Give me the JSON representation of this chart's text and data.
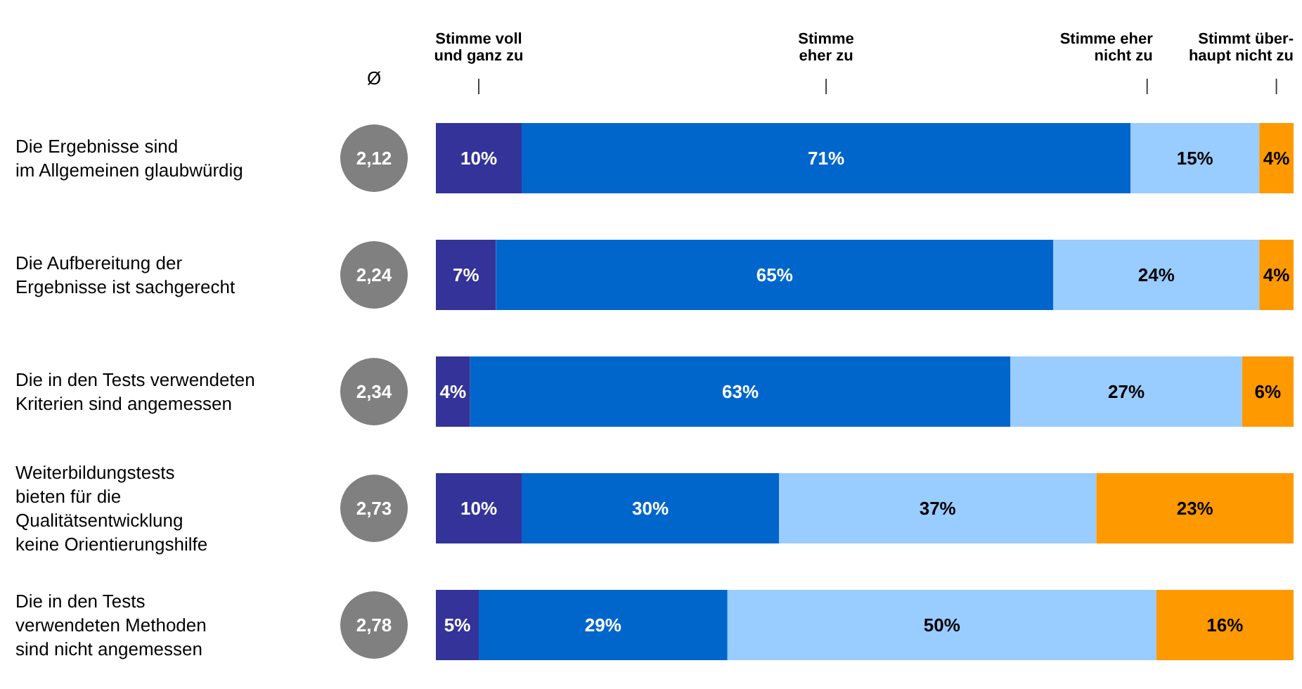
{
  "chart_data": {
    "type": "bar",
    "orientation": "horizontal",
    "stacked": true,
    "tick_labels": "y",
    "categories": [
      "Die Ergebnisse sind\nim Allgemeinen glaubwürdig",
      "Die Aufbereitung der\nErgebnisse ist sachgerecht",
      "Die in den Tests verwendeten\nKriterien sind angemessen",
      "Weiterbildungstests\nbieten für die\nQualitätsentwicklung\nkeine Orientierungshilfe",
      "Die in den Tests\nverwendeten Methoden\nsind nicht angemessen"
    ],
    "series": [
      {
        "color": "#333399",
        "values": [
          10,
          7,
          4,
          10,
          5
        ],
        "value_labels": [
          "10%",
          "7%",
          "4%",
          "10%",
          "5%"
        ]
      },
      {
        "color": "#0066cc",
        "values": [
          71,
          65,
          63,
          30,
          29
        ],
        "value_labels": [
          "71%",
          "65%",
          "63%",
          "30%",
          "29%"
        ]
      },
      {
        "color": "#99ccff",
        "values": [
          15,
          24,
          27,
          37,
          50
        ],
        "value_labels": [
          "15%",
          "24%",
          "27%",
          "37%",
          "50%"
        ]
      },
      {
        "color": "#ff9900",
        "values": [
          4,
          4,
          6,
          23,
          16
        ],
        "value_labels": [
          "4%",
          "4%",
          "6%",
          "23%",
          "16%"
        ]
      }
    ],
    "annotations": [
      "Stimme voll\nund ganz zu",
      "Stimme\neher zu",
      "Stimme eher\nnicht zu",
      "Stimmt über-\nhaupt nicht zu",
      "Ø",
      "2,12",
      "2,24",
      "2,34",
      "2,73",
      "2,78"
    ]
  }
}
